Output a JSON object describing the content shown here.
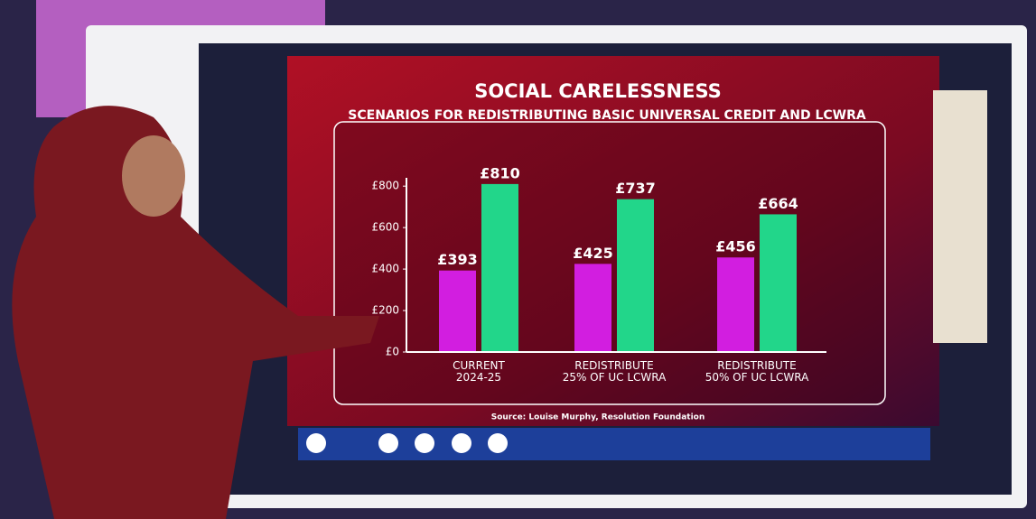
{
  "chart_data": {
    "type": "bar",
    "title": "SOCIAL CARELESSNESS",
    "subtitle": "SCENARIOS FOR REDISTRIBUTING BASIC UNIVERSAL CREDIT AND LCWRA",
    "categories": [
      "CURRENT\n2024-25",
      "REDISTRIBUTE\n25% OF UC LCWRA",
      "REDISTRIBUTE\n50% OF UC LCWRA"
    ],
    "series": [
      {
        "color": "#d21ee0",
        "values": [
          393,
          425,
          456
        ],
        "value_labels": [
          "£393",
          "£425",
          "£456"
        ]
      },
      {
        "color": "#22d68a",
        "values": [
          810,
          737,
          664
        ],
        "value_labels": [
          "£810",
          "£737",
          "£664"
        ]
      }
    ],
    "ylim": [
      0,
      840
    ],
    "yticks": [
      {
        "value": 0,
        "label": "£0"
      },
      {
        "value": 200,
        "label": "£200"
      },
      {
        "value": 400,
        "label": "£400"
      },
      {
        "value": 600,
        "label": "£600"
      },
      {
        "value": 800,
        "label": "£800"
      }
    ],
    "grid": false,
    "source": "Source: Louise Murphy, Resolution Foundation"
  }
}
